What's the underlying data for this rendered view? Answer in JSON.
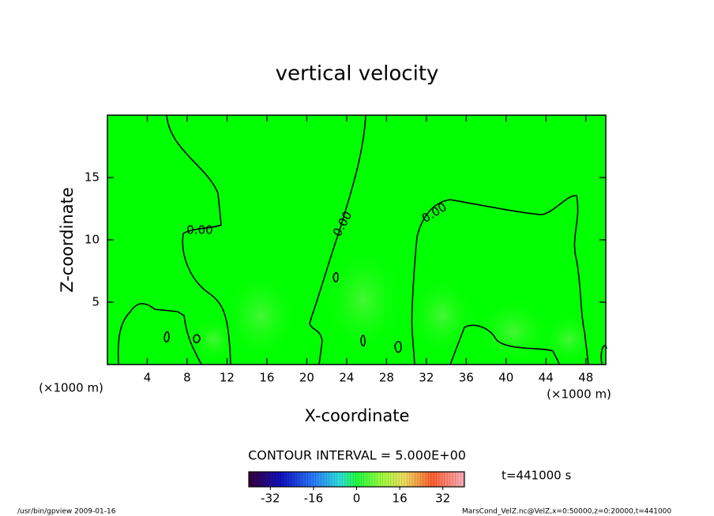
{
  "chart_data": {
    "type": "contour",
    "title": "vertical velocity",
    "xlabel": "X-coordinate",
    "ylabel": "Z-coordinate",
    "x_unit_left": "(×1000 m)",
    "x_unit_right": "(×1000 m)",
    "xlim": [
      0,
      50
    ],
    "ylim": [
      0,
      20
    ],
    "xticks": [
      4,
      8,
      12,
      16,
      20,
      24,
      28,
      32,
      36,
      40,
      44,
      48
    ],
    "yticks": [
      5,
      10,
      15
    ],
    "field_color": "#00ff00",
    "contour_labels": [
      "0.00",
      "0.00",
      "0.00"
    ],
    "contour_interval_text": "CONTOUR INTERVAL = 5.000E+00",
    "time_text": "t=441000 s",
    "colorbar": {
      "lim": [
        -40,
        40
      ],
      "ticks": [
        -32,
        -16,
        0,
        16,
        32
      ]
    },
    "footer_left": "/usr/bin/gpview   2009-01-16",
    "footer_right": "MarsCond_VelZ.nc@VelZ,x=0:50000,z=0:20000,t=441000"
  }
}
